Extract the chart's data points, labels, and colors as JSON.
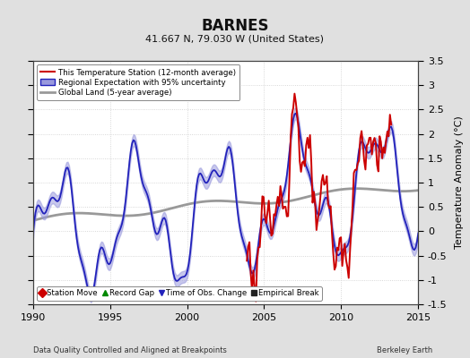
{
  "title": "BARNES",
  "subtitle": "41.667 N, 79.030 W (United States)",
  "xlabel_left": "Data Quality Controlled and Aligned at Breakpoints",
  "xlabel_right": "Berkeley Earth",
  "ylabel": "Temperature Anomaly (°C)",
  "ylim": [
    -1.5,
    3.5
  ],
  "xlim": [
    1990,
    2015
  ],
  "yticks": [
    -1.5,
    -1,
    -0.5,
    0,
    0.5,
    1,
    1.5,
    2,
    2.5,
    3,
    3.5
  ],
  "xticks": [
    1990,
    1995,
    2000,
    2005,
    2010,
    2015
  ],
  "bg_color": "#e0e0e0",
  "plot_bg_color": "#ffffff",
  "grid_color": "#cccccc",
  "red_color": "#cc0000",
  "blue_color": "#2222bb",
  "blue_fill_color": "#9999dd",
  "gray_color": "#999999",
  "legend_items": [
    {
      "label": "This Temperature Station (12-month average)",
      "color": "#cc0000",
      "lw": 1.5
    },
    {
      "label": "Regional Expectation with 95% uncertainty",
      "color": "#2222bb",
      "lw": 1.5
    },
    {
      "label": "Global Land (5-year average)",
      "color": "#999999",
      "lw": 2.0
    }
  ],
  "marker_legend": [
    {
      "label": "Station Move",
      "color": "#cc0000",
      "marker": "D"
    },
    {
      "label": "Record Gap",
      "color": "#008800",
      "marker": "^"
    },
    {
      "label": "Time of Obs. Change",
      "color": "#2222bb",
      "marker": "v"
    },
    {
      "label": "Empirical Break",
      "color": "#222222",
      "marker": "s"
    }
  ]
}
